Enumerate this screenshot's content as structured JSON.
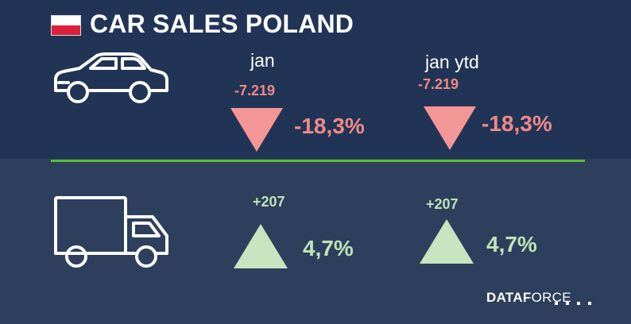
{
  "header": {
    "title": "CAR SALES POLAND",
    "flag_icon": "poland-flag-icon",
    "flag_colors": {
      "top": "#ffffff",
      "bottom": "#dc1f3b"
    }
  },
  "columns": {
    "jan_label": "jan",
    "ytd_label": "jan ytd"
  },
  "cars": {
    "icon": "car-icon",
    "jan": {
      "delta": "-7.219",
      "percent": "-18,3%",
      "direction": "down"
    },
    "ytd": {
      "delta": "-7.219",
      "percent": "-18,3%",
      "direction": "down"
    }
  },
  "trucks": {
    "icon": "truck-icon",
    "jan": {
      "delta": "+207",
      "percent": "4,7%",
      "direction": "up"
    },
    "ytd": {
      "delta": "+207",
      "percent": "4,7%",
      "direction": "up"
    }
  },
  "colors": {
    "top_background": "#213456",
    "bottom_background": "#2d3f5d",
    "divider": "#5cc02f",
    "negative": "#ef8a86",
    "positive": "#bfe3b6"
  },
  "brand": {
    "bold_part": "DATAF",
    "light_part": "ORCE"
  }
}
